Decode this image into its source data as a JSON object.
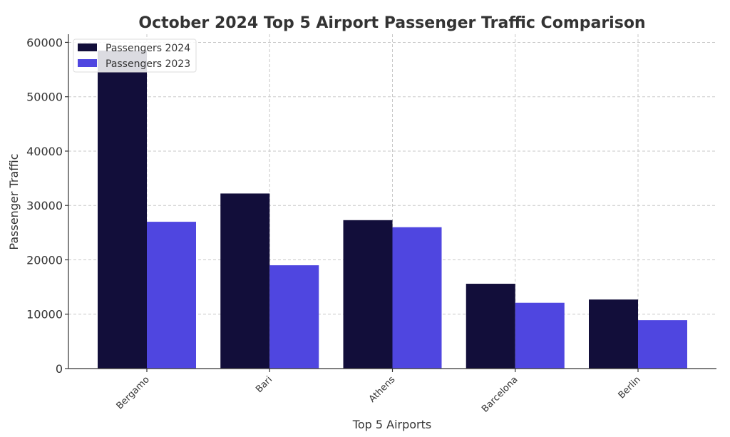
{
  "chart_data": {
    "type": "bar",
    "title": "October 2024 Top 5 Airport Passenger Traffic Comparison",
    "xlabel": "Top 5 Airports",
    "ylabel": "Passenger Traffic",
    "categories": [
      "Bergamo",
      "Bari",
      "Athens",
      "Barcelona",
      "Berlin"
    ],
    "series": [
      {
        "name": "Passengers 2024",
        "color": "#120e3a",
        "values": [
          58500,
          32200,
          27300,
          15600,
          12700
        ]
      },
      {
        "name": "Passengers 2023",
        "color": "#4f46e0",
        "values": [
          27000,
          19000,
          26000,
          12100,
          8900
        ]
      }
    ],
    "ylim": [
      0,
      61500
    ],
    "yticks": [
      0,
      10000,
      20000,
      30000,
      40000,
      50000,
      60000
    ],
    "grid": true,
    "legend_position": "top-left"
  }
}
